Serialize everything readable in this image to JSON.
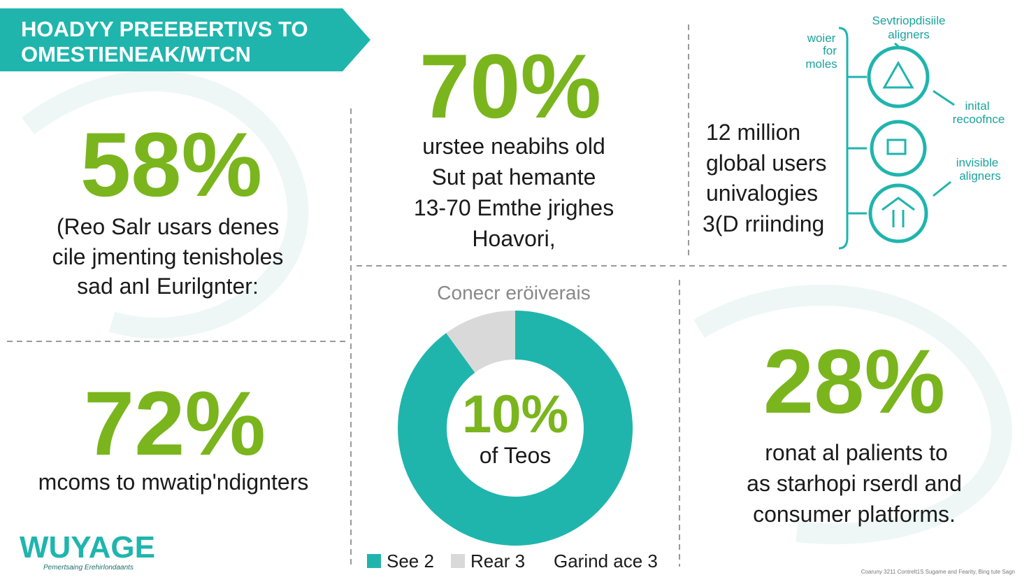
{
  "header": {
    "title_lines": [
      "HOADYY PREEBERTIVS TO",
      "OMESTIENEAK/WTCN"
    ]
  },
  "stat_58": {
    "value": "58%",
    "text_lines": [
      "(Reo Salr usars denes",
      "cile jmenting tenisholes",
      "sad anI Eurilgnter:"
    ]
  },
  "stat_72": {
    "value": "72%",
    "text_lines": [
      "mcoms to mwatip'ndignters"
    ]
  },
  "stat_70": {
    "value": "70%",
    "text_lines": [
      "urstee neabihs old",
      "Sut pat hemante",
      "13-70 Emthe jrighes",
      "Hoavori,"
    ]
  },
  "stat_users": {
    "text_lines": [
      "12 million",
      "global users",
      "univalogies",
      "3(D rriinding"
    ]
  },
  "diagram": {
    "top_label": [
      "Sevtriopdisiile",
      "aligners"
    ],
    "left_label": [
      "woier",
      "for",
      "moles"
    ],
    "right_label_1": [
      "inital",
      "recoofnce"
    ],
    "right_label_2": [
      "invisible",
      "aligners"
    ]
  },
  "donut": {
    "title": "Conecr eröiverais",
    "center_value": "10%",
    "center_text": "of Teos",
    "series": [
      {
        "name": "See 2",
        "color": "#1fb5ad",
        "value": 90
      },
      {
        "name": "Rear 3",
        "color": "#d9d9d9",
        "value": 10
      },
      {
        "name": "Garind ace 3"
      }
    ]
  },
  "stat_28": {
    "value": "28%",
    "text_lines": [
      "ronat al palients to",
      "as starhopi rserdl and",
      "consumer platforms."
    ]
  },
  "footer": {
    "logo": "WUYAGE",
    "tagline": "Pemertsaing Erehirlondaants",
    "credits": "Coaruny 3211 Contrelt1S Sugame and Fearity, Bing tute Sagn"
  }
}
